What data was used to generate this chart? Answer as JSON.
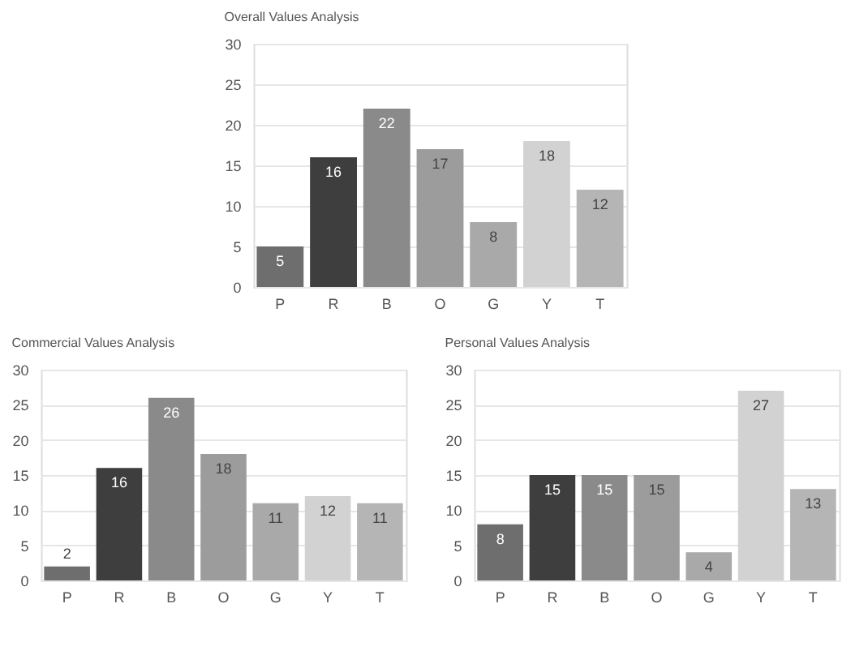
{
  "chart_data": [
    {
      "type": "bar",
      "title": "Overall Values Analysis",
      "categories": [
        "P",
        "R",
        "B",
        "O",
        "G",
        "Y",
        "T"
      ],
      "values": [
        5,
        16,
        22,
        17,
        8,
        18,
        12
      ],
      "colors": [
        "#6e6e6e",
        "#3e3e3e",
        "#8a8a8a",
        "#9c9c9c",
        "#a9a9a9",
        "#d2d2d2",
        "#b5b5b5"
      ],
      "ylim": [
        0,
        30
      ],
      "yticks": [
        0,
        5,
        10,
        15,
        20,
        25,
        30
      ],
      "grid": "y",
      "data_labels": true
    },
    {
      "type": "bar",
      "title": "Commercial Values Analysis",
      "categories": [
        "P",
        "R",
        "B",
        "O",
        "G",
        "Y",
        "T"
      ],
      "values": [
        2,
        16,
        26,
        18,
        11,
        12,
        11
      ],
      "colors": [
        "#6e6e6e",
        "#3e3e3e",
        "#8a8a8a",
        "#9c9c9c",
        "#a9a9a9",
        "#d2d2d2",
        "#b5b5b5"
      ],
      "ylim": [
        0,
        30
      ],
      "yticks": [
        0,
        5,
        10,
        15,
        20,
        25,
        30
      ],
      "grid": "y",
      "data_labels": true
    },
    {
      "type": "bar",
      "title": "Personal Values Analysis",
      "categories": [
        "P",
        "R",
        "B",
        "O",
        "G",
        "Y",
        "T"
      ],
      "values": [
        8,
        15,
        15,
        15,
        4,
        27,
        13
      ],
      "colors": [
        "#6e6e6e",
        "#3e3e3e",
        "#8a8a8a",
        "#9c9c9c",
        "#a9a9a9",
        "#d2d2d2",
        "#b5b5b5"
      ],
      "ylim": [
        0,
        30
      ],
      "yticks": [
        0,
        5,
        10,
        15,
        20,
        25,
        30
      ],
      "grid": "y",
      "data_labels": true
    }
  ]
}
